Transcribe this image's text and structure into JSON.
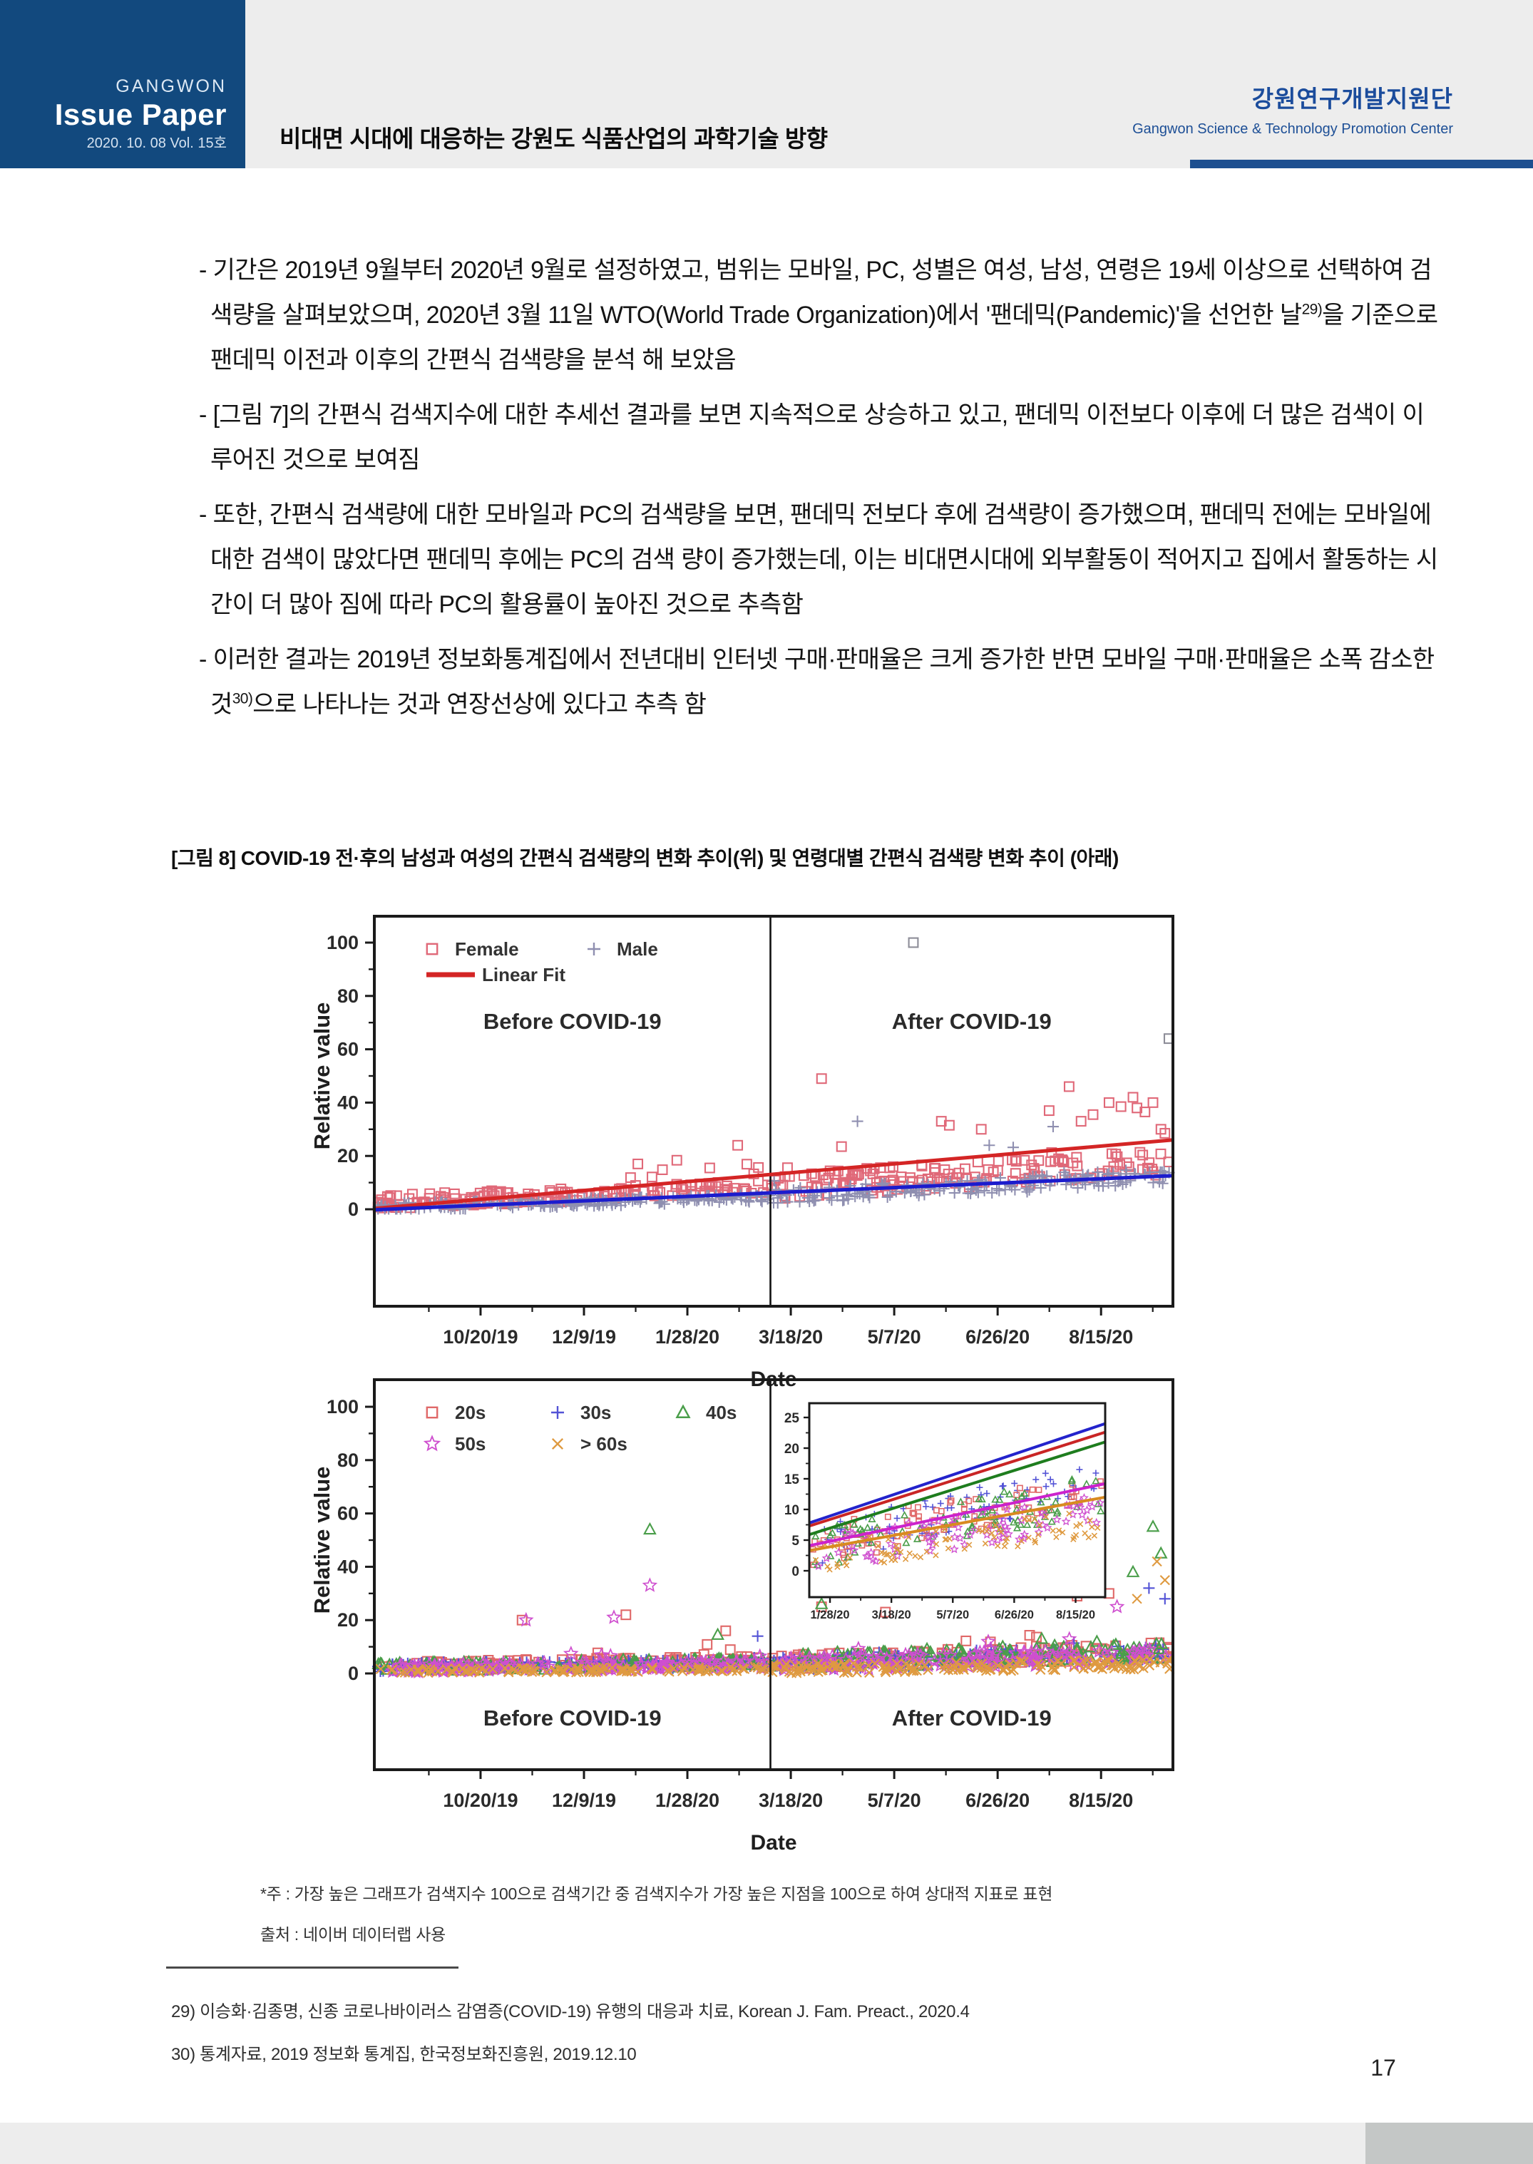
{
  "page_number": "17",
  "header": {
    "brand_top": "GANGWON",
    "brand_main": "Issue Paper",
    "brand_sub": "2020. 10. 08  Vol. 15호",
    "doc_title": "비대면 시대에 대응하는 강원도 식품산업의 과학기술 방향",
    "org_kr": "강원연구개발지원단",
    "org_en": "Gangwon Science & Technology Promotion Center",
    "brand_bg": "#12497e",
    "accent_color": "#1d4f90"
  },
  "body": {
    "bullet_marker": "-",
    "bullets": [
      {
        "segments": [
          {
            "text": "기간은 2019년 9월부터 2020년 9월로 설정하였고, 범위는 모바일, PC, 성별은 여성, 남성, 연령은 19세 이상으로 선택하여 검색량을 살펴보았으며, 2020년 3월 11일 WTO(World Trade Organization)에서 '팬데믹(Pandemic)'을 선언한 날"
          },
          {
            "sup": "29)"
          },
          {
            "text": "을 기준으로 팬데믹 이전과 이후의 간편식 검색량을 분석 해 보았음"
          }
        ]
      },
      {
        "segments": [
          {
            "text": "[그림 7]의 간편식 검색지수에 대한 추세선 결과를 보면 지속적으로 상승하고 있고, 팬데믹 이전보다 이후에 더 많은 검색이 이루어진 것으로 보여짐"
          }
        ]
      },
      {
        "segments": [
          {
            "text": "또한, 간편식 검색량에 대한 모바일과 PC의 검색량을 보면, 팬데믹 전보다 후에 검색량이 증가했으며, 팬데믹 전에는 모바일에 대한 검색이 많았다면 팬데믹 후에는 PC의 검색 량이 증가했는데, 이는 비대면시대에 외부활동이 적어지고 집에서 활동하는 시간이 더 많아 짐에 따라 PC의 활용률이 높아진 것으로 추측함"
          }
        ]
      },
      {
        "segments": [
          {
            "text": "이러한 결과는 2019년 정보화통계집에서 전년대비 인터넷 구매·판매율은 크게 증가한 반면 모바일 구매·판매율은 소폭 감소한 것"
          },
          {
            "sup": "30)"
          },
          {
            "text": "으로 나타나는 것과 연장선상에 있다고 추측 함"
          }
        ]
      }
    ]
  },
  "figure": {
    "caption": "[그림 8] COVID-19 전·후의 남성과 여성의 간편식 검색량의 변화 추이(위) 및 연령대별 간편식 검색량 변화 추이 (아래)",
    "note": "*주 :  가장 높은 그래프가 검색지수 100으로 검색기간 중 검색지수가 가장 높은 지점을 100으로 하여 상대적 지표로 표현",
    "source": "출처 : 네이버 데이터랩 사용"
  },
  "footnotes": [
    {
      "marker": "29)",
      "text": " 이승화·김종명, 신종 코로나바이러스 감염증(COVID-19) 유행의 대응과 치료, Korean J. Fam. Preact., 2020.4"
    },
    {
      "marker": "30)",
      "text": " 통계자료, 2019 정보화 통계집, 한국정보화진흥원, 2019.12.10"
    }
  ],
  "chart_data": [
    {
      "type": "scatter",
      "xlabel": "Date",
      "ylabel": "Relative value",
      "ylim": [
        0,
        100
      ],
      "yticks": [
        0,
        20,
        40,
        60,
        80,
        100
      ],
      "xticks": [
        "10/20/19",
        "12/9/19",
        "1/28/20",
        "3/18/20",
        "5/7/20",
        "6/26/20",
        "8/15/20"
      ],
      "regions": {
        "before": "Before COVID-19",
        "after": "After COVID-19"
      },
      "divider_frac": 0.496,
      "legend_rows": [
        [
          {
            "label": "Female",
            "marker": "square",
            "color": "#e06878"
          },
          {
            "label": "Male",
            "marker": "plus",
            "color": "#8f8fb0"
          }
        ],
        [
          {
            "label": "Linear Fit",
            "marker": "line",
            "color": "#d42525"
          }
        ]
      ],
      "series": [
        {
          "name": "Female",
          "marker": "square",
          "color": "#e06878",
          "n": 340,
          "seed": 11,
          "y_start": 2.6,
          "y_mid": 8.5,
          "y_end": 17.5,
          "noise_before": 2.6,
          "noise_after": 4.8,
          "spike_p": 0.05,
          "spike_amp": 13,
          "spike_from": 0.3,
          "fit": {
            "color": "#d42525",
            "y1": 0.3,
            "y2": 26
          },
          "outliers": [
            [
              0.33,
              17
            ],
            [
              0.42,
              15.5
            ],
            [
              0.455,
              24
            ],
            [
              0.56,
              49
            ],
            [
              0.585,
              23.5
            ],
            [
              0.71,
              33
            ],
            [
              0.72,
              31.5
            ],
            [
              0.76,
              30
            ],
            [
              0.845,
              37
            ],
            [
              0.87,
              46
            ],
            [
              0.885,
              33
            ],
            [
              0.9,
              35.5
            ],
            [
              0.92,
              40
            ],
            [
              0.935,
              38.5
            ],
            [
              0.95,
              42
            ],
            [
              0.955,
              38
            ],
            [
              0.965,
              36.5
            ],
            [
              0.975,
              40
            ],
            [
              0.985,
              30
            ],
            [
              0.99,
              28.5
            ]
          ]
        },
        {
          "name": "Male",
          "marker": "plus",
          "color": "#8f8fb0",
          "n": 340,
          "seed": 29,
          "y_start": 0.6,
          "y_mid": 4.4,
          "y_end": 12.5,
          "noise_before": 1.6,
          "noise_after": 3.1,
          "spike_p": 0.03,
          "spike_amp": 6,
          "spike_from": 0.5,
          "fit": {
            "color": "#1c1ccd",
            "y1": -0.2,
            "y2": 12.6
          },
          "outliers": [
            [
              0.605,
              33
            ],
            [
              0.77,
              24
            ],
            [
              0.8,
              23.2
            ],
            [
              0.85,
              31
            ]
          ]
        },
        {
          "name": "Male-high-outliers",
          "marker": "square",
          "color": "#8d8d98",
          "n": 0,
          "seed": 1,
          "y_start": 0,
          "y_mid": 0,
          "y_end": 0,
          "noise_before": 0,
          "noise_after": 0,
          "spike_p": 0,
          "spike_amp": 0,
          "spike_from": 1,
          "outliers": [
            [
              0.675,
              100
            ],
            [
              0.995,
              64
            ]
          ]
        }
      ]
    },
    {
      "type": "scatter",
      "xlabel": "Date",
      "ylabel": "Relative value",
      "ylim": [
        0,
        100
      ],
      "yticks": [
        0,
        20,
        40,
        60,
        80,
        100
      ],
      "xticks": [
        "10/20/19",
        "12/9/19",
        "1/28/20",
        "3/18/20",
        "5/7/20",
        "6/26/20",
        "8/15/20"
      ],
      "regions": {
        "before": "Before COVID-19",
        "after": "After COVID-19"
      },
      "divider_frac": 0.496,
      "legend_rows": [
        [
          {
            "label": "20s",
            "marker": "square",
            "color": "#e06868"
          },
          {
            "label": "30s",
            "marker": "plus",
            "color": "#5353d6"
          },
          {
            "label": "40s",
            "marker": "triangle",
            "color": "#4a9e4a"
          }
        ],
        [
          {
            "label": "50s",
            "marker": "star",
            "color": "#cf4fcf"
          },
          {
            "label": "> 60s",
            "marker": "xmark",
            "color": "#df9a40"
          }
        ]
      ],
      "series": [
        {
          "name": "20s",
          "marker": "square",
          "color": "#e06868",
          "n": 260,
          "seed": 3,
          "y_start": 2.8,
          "y_mid": 4.6,
          "y_end": 8.6,
          "noise_before": 1.9,
          "noise_after": 3.1,
          "spike_p": 0.04,
          "spike_amp": 7,
          "spike_from": 0.2,
          "outliers": [
            [
              0.185,
              20
            ],
            [
              0.315,
              22
            ],
            [
              0.44,
              16
            ],
            [
              0.56,
              25
            ],
            [
              0.64,
              23
            ],
            [
              0.88,
              29
            ],
            [
              0.92,
              30
            ]
          ]
        },
        {
          "name": "30s",
          "marker": "plus",
          "color": "#5353d6",
          "n": 260,
          "seed": 5,
          "y_start": 2.3,
          "y_mid": 4.0,
          "y_end": 8.0,
          "noise_before": 1.7,
          "noise_after": 2.9,
          "spike_p": 0.03,
          "spike_amp": 6,
          "spike_from": 0.3,
          "outliers": [
            [
              0.48,
              14
            ],
            [
              0.97,
              32
            ],
            [
              0.99,
              28
            ]
          ]
        },
        {
          "name": "40s",
          "marker": "triangle",
          "color": "#4a9e4a",
          "n": 260,
          "seed": 8,
          "y_start": 2.3,
          "y_mid": 4.2,
          "y_end": 8.8,
          "noise_before": 1.7,
          "noise_after": 3.2,
          "spike_p": 0.04,
          "spike_amp": 8,
          "spike_from": 0.4,
          "outliers": [
            [
              0.345,
              54
            ],
            [
              0.43,
              14.5
            ],
            [
              0.56,
              26
            ],
            [
              0.95,
              38
            ],
            [
              0.975,
              55
            ],
            [
              0.985,
              45
            ]
          ]
        },
        {
          "name": "50s",
          "marker": "star",
          "color": "#cf4fcf",
          "n": 260,
          "seed": 13,
          "y_start": 1.9,
          "y_mid": 3.4,
          "y_end": 6.8,
          "noise_before": 1.5,
          "noise_after": 2.7,
          "spike_p": 0.03,
          "spike_amp": 6,
          "spike_from": 0.2,
          "outliers": [
            [
              0.19,
              20
            ],
            [
              0.3,
              21
            ],
            [
              0.345,
              33
            ],
            [
              0.93,
              25
            ]
          ]
        },
        {
          "name": "> 60s",
          "marker": "xmark",
          "color": "#df9a40",
          "n": 260,
          "seed": 17,
          "y_start": 0.9,
          "y_mid": 1.7,
          "y_end": 3.6,
          "noise_before": 0.9,
          "noise_after": 1.9,
          "spike_p": 0.03,
          "spike_amp": 4,
          "spike_from": 0.5,
          "outliers": [
            [
              0.955,
              28
            ],
            [
              0.98,
              42
            ],
            [
              0.99,
              35
            ]
          ]
        }
      ],
      "inset": {
        "ylim": [
          0,
          25
        ],
        "yticks": [
          0,
          5,
          10,
          15,
          20,
          25
        ],
        "xticks": [
          "1/28/20",
          "3/18/20",
          "5/7/20",
          "6/26/20",
          "8/15/20"
        ],
        "series": [
          {
            "name": "30s",
            "color": "#5353d6",
            "marker": "plus",
            "n": 85,
            "seed": 21,
            "y_start": 4.0,
            "y_end": 15.5,
            "noise": 3.4,
            "fit": {
              "color": "#2323cc",
              "y1": 7.8,
              "y2": 24.0
            }
          },
          {
            "name": "20s",
            "color": "#e06868",
            "marker": "square",
            "n": 85,
            "seed": 22,
            "y_start": 3.8,
            "y_end": 14.5,
            "noise": 3.3,
            "fit": {
              "color": "#c92525",
              "y1": 7.3,
              "y2": 22.6
            }
          },
          {
            "name": "40s",
            "color": "#4a9e4a",
            "marker": "triangle",
            "n": 85,
            "seed": 23,
            "y_start": 3.2,
            "y_end": 13.0,
            "noise": 3.3,
            "fit": {
              "color": "#1e7d1e",
              "y1": 5.9,
              "y2": 21.0
            }
          },
          {
            "name": "50s",
            "color": "#cf4fcf",
            "marker": "star",
            "n": 85,
            "seed": 24,
            "y_start": 2.6,
            "y_end": 10.0,
            "noise": 2.9,
            "fit": {
              "color": "#cc22cc",
              "y1": 4.1,
              "y2": 14.2
            }
          },
          {
            "name": "> 60s",
            "color": "#df9a40",
            "marker": "xmark",
            "n": 85,
            "seed": 25,
            "y_start": 2.0,
            "y_end": 8.0,
            "noise": 2.4,
            "fit": {
              "color": "#d88a20",
              "y1": 3.3,
              "y2": 12.0
            }
          }
        ]
      }
    }
  ]
}
